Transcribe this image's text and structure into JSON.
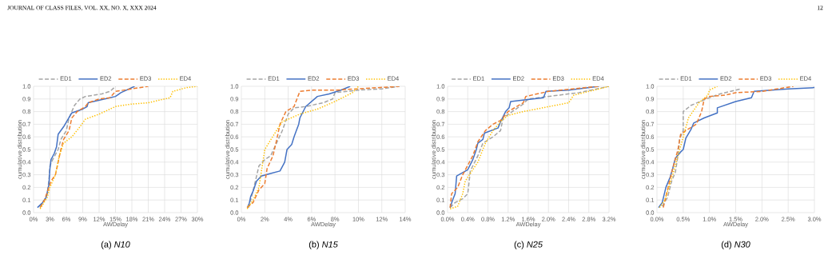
{
  "chart_data": [
    {
      "type": "line",
      "title": "(a) *N10*",
      "xlabel": "AWDelay",
      "ylabel": "cumulative distribution",
      "grid": true,
      "legend": "top",
      "marker": "none",
      "annotations": [
        "JOURNAL OF CLASS FILES, VOL. XX, NO. X, XXX 2024",
        "12"
      ],
      "xlim": [
        0,
        30
      ],
      "xticks": [
        {
          "value": 0,
          "label": "0%"
        },
        {
          "value": 3,
          "label": "3%"
        },
        {
          "value": 6,
          "label": "6%"
        },
        {
          "value": 9,
          "label": "9%"
        },
        {
          "value": 12,
          "label": "12%"
        },
        {
          "value": 15,
          "label": "15%"
        },
        {
          "value": 18,
          "label": "18%"
        },
        {
          "value": 21,
          "label": "21%"
        },
        {
          "value": 24,
          "label": "24%"
        },
        {
          "value": 27,
          "label": "27%"
        },
        {
          "value": 30,
          "label": "30%"
        }
      ],
      "ylim": [
        0,
        1
      ],
      "yticks": [
        {
          "value": 0,
          "label": "0.0"
        },
        {
          "value": 0.1,
          "label": "0.1"
        },
        {
          "value": 0.2,
          "label": "0.2"
        },
        {
          "value": 0.3,
          "label": "0.3"
        },
        {
          "value": 0.4,
          "label": "0.4"
        },
        {
          "value": 0.5,
          "label": "0.5"
        },
        {
          "value": 0.6,
          "label": "0.6"
        },
        {
          "value": 0.7,
          "label": "0.7"
        },
        {
          "value": 0.8,
          "label": "0.8"
        },
        {
          "value": 0.9,
          "label": "0.9"
        },
        {
          "value": 1,
          "label": "1.0"
        }
      ],
      "series": [
        {
          "name": "ED1",
          "color": "#a5a5a5",
          "line_style": "dashed",
          "x": [
            1,
            2,
            2.5,
            2.8,
            3,
            3.5,
            4.5,
            5,
            6,
            6.5,
            7.5,
            8.5,
            9.5,
            11,
            12.5,
            14,
            15
          ],
          "values": [
            0.05,
            0.1,
            0.15,
            0.25,
            0.37,
            0.42,
            0.5,
            0.58,
            0.65,
            0.75,
            0.85,
            0.9,
            0.92,
            0.93,
            0.94,
            0.96,
            1.0
          ]
        },
        {
          "name": "ED2",
          "color": "#4472c4",
          "line_style": "solid",
          "x": [
            0.7,
            1.5,
            2.3,
            2.8,
            3.0,
            3.2,
            3.8,
            4.2,
            4.5,
            5.5,
            7,
            9,
            9.8,
            10,
            12,
            14,
            15,
            16,
            18.5
          ],
          "values": [
            0.04,
            0.07,
            0.12,
            0.22,
            0.35,
            0.42,
            0.47,
            0.52,
            0.62,
            0.68,
            0.79,
            0.82,
            0.84,
            0.87,
            0.89,
            0.91,
            0.92,
            0.95,
            1.0
          ]
        },
        {
          "name": "ED3",
          "color": "#ed7d31",
          "line_style": "dashed",
          "x": [
            1.2,
            2,
            2.8,
            3.2,
            4,
            4.5,
            5,
            5.5,
            6.5,
            7,
            8,
            9.5,
            10,
            12,
            14,
            15,
            18,
            21
          ],
          "values": [
            0.04,
            0.1,
            0.2,
            0.25,
            0.3,
            0.4,
            0.5,
            0.58,
            0.65,
            0.75,
            0.8,
            0.84,
            0.87,
            0.9,
            0.91,
            0.96,
            0.98,
            1.0
          ]
        },
        {
          "name": "ED4",
          "color": "#ffc000",
          "line_style": "dotted",
          "x": [
            1.2,
            2.5,
            3,
            4,
            4.7,
            5.5,
            7,
            8.5,
            9.5,
            12,
            15,
            18,
            21,
            25,
            25.5,
            28,
            30
          ],
          "values": [
            0.03,
            0.12,
            0.2,
            0.3,
            0.45,
            0.55,
            0.6,
            0.68,
            0.74,
            0.78,
            0.84,
            0.86,
            0.87,
            0.91,
            0.96,
            0.99,
            1.0
          ]
        }
      ]
    },
    {
      "type": "line",
      "title": "(b) *N15*",
      "xlabel": "AWDelay",
      "ylabel": "cumulative distribution",
      "grid": true,
      "legend": "top",
      "marker": "none",
      "xlim": [
        0,
        14
      ],
      "xticks": [
        {
          "value": 0,
          "label": "0%"
        },
        {
          "value": 2,
          "label": "2%"
        },
        {
          "value": 4,
          "label": "4%"
        },
        {
          "value": 6,
          "label": "6%"
        },
        {
          "value": 8,
          "label": "8%"
        },
        {
          "value": 10,
          "label": "10%"
        },
        {
          "value": 12,
          "label": "12%"
        },
        {
          "value": 14,
          "label": "14%"
        }
      ],
      "ylim": [
        0,
        1
      ],
      "yticks": [
        {
          "value": 0,
          "label": "0.0"
        },
        {
          "value": 0.1,
          "label": "0.1"
        },
        {
          "value": 0.2,
          "label": "0.2"
        },
        {
          "value": 0.3,
          "label": "0.3"
        },
        {
          "value": 0.4,
          "label": "0.4"
        },
        {
          "value": 0.5,
          "label": "0.5"
        },
        {
          "value": 0.6,
          "label": "0.6"
        },
        {
          "value": 0.7,
          "label": "0.7"
        },
        {
          "value": 0.8,
          "label": "0.8"
        },
        {
          "value": 0.9,
          "label": "0.9"
        },
        {
          "value": 1,
          "label": "1.0"
        }
      ],
      "series": [
        {
          "name": "ED1",
          "color": "#a5a5a5",
          "line_style": "dashed",
          "x": [
            0.5,
            0.8,
            1.2,
            1.5,
            2,
            2.5,
            3,
            3.5,
            4,
            4.5,
            5.5,
            7,
            7.8,
            8,
            10,
            12,
            13.5
          ],
          "values": [
            0.04,
            0.1,
            0.25,
            0.37,
            0.42,
            0.45,
            0.55,
            0.65,
            0.78,
            0.83,
            0.84,
            0.87,
            0.9,
            0.95,
            0.97,
            0.98,
            1.0
          ]
        },
        {
          "name": "ED2",
          "color": "#4472c4",
          "line_style": "solid",
          "x": [
            0.6,
            0.8,
            1.0,
            1.3,
            1.7,
            2.5,
            3.3,
            3.7,
            3.9,
            4.3,
            4.5,
            4.7,
            4.9,
            5.0,
            5.5,
            6.5,
            7.5,
            8.5,
            9.3
          ],
          "values": [
            0.04,
            0.13,
            0.17,
            0.25,
            0.29,
            0.31,
            0.33,
            0.4,
            0.5,
            0.54,
            0.6,
            0.65,
            0.7,
            0.75,
            0.84,
            0.92,
            0.94,
            0.97,
            1.0
          ]
        },
        {
          "name": "ED3",
          "color": "#ed7d31",
          "line_style": "dashed",
          "x": [
            0.5,
            1,
            1.5,
            2,
            2.2,
            2.7,
            3,
            3.3,
            3.8,
            4.5,
            5,
            6,
            8,
            10,
            13.5
          ],
          "values": [
            0.04,
            0.08,
            0.18,
            0.23,
            0.35,
            0.45,
            0.57,
            0.7,
            0.8,
            0.84,
            0.96,
            0.97,
            0.97,
            0.98,
            1.0
          ]
        },
        {
          "name": "ED4",
          "color": "#ffc000",
          "line_style": "dotted",
          "x": [
            0.5,
            1,
            1.5,
            2,
            3,
            3.5,
            5,
            6.5,
            8,
            9.5,
            10
          ],
          "values": [
            0.03,
            0.1,
            0.2,
            0.5,
            0.65,
            0.72,
            0.78,
            0.82,
            0.88,
            0.95,
            1.0
          ]
        }
      ]
    },
    {
      "type": "line",
      "title": "(c) *N25*",
      "xlabel": "AWDelay",
      "ylabel": "cumulative distribution",
      "grid": true,
      "legend": "top",
      "marker": "none",
      "xlim": [
        0,
        3.2
      ],
      "xticks": [
        {
          "value": 0,
          "label": "0.0%"
        },
        {
          "value": 0.4,
          "label": "0.4%"
        },
        {
          "value": 0.8,
          "label": "0.8%"
        },
        {
          "value": 1.2,
          "label": "1.2%"
        },
        {
          "value": 1.6,
          "label": "1.6%"
        },
        {
          "value": 2.0,
          "label": "2.0%"
        },
        {
          "value": 2.4,
          "label": "2.4%"
        },
        {
          "value": 2.8,
          "label": "2.8%"
        },
        {
          "value": 3.2,
          "label": "3.2%"
        }
      ],
      "ylim": [
        0,
        1
      ],
      "yticks": [
        {
          "value": 0,
          "label": "0.0"
        },
        {
          "value": 0.1,
          "label": "0.1"
        },
        {
          "value": 0.2,
          "label": "0.2"
        },
        {
          "value": 0.3,
          "label": "0.3"
        },
        {
          "value": 0.4,
          "label": "0.4"
        },
        {
          "value": 0.5,
          "label": "0.5"
        },
        {
          "value": 0.6,
          "label": "0.6"
        },
        {
          "value": 0.7,
          "label": "0.7"
        },
        {
          "value": 0.8,
          "label": "0.8"
        },
        {
          "value": 0.9,
          "label": "0.9"
        },
        {
          "value": 1,
          "label": "1.0"
        }
      ],
      "series": [
        {
          "name": "ED1",
          "color": "#a5a5a5",
          "line_style": "dashed",
          "x": [
            0.05,
            0.15,
            0.3,
            0.4,
            0.42,
            0.45,
            0.6,
            0.7,
            0.9,
            1.05,
            1.1,
            1.5,
            1.6,
            2.2,
            2.6,
            3.2
          ],
          "values": [
            0.04,
            0.08,
            0.11,
            0.15,
            0.22,
            0.33,
            0.45,
            0.55,
            0.6,
            0.65,
            0.75,
            0.86,
            0.9,
            0.93,
            0.95,
            1.0
          ]
        },
        {
          "name": "ED2",
          "color": "#4472c4",
          "line_style": "solid",
          "x": [
            0.05,
            0.1,
            0.15,
            0.18,
            0.4,
            0.5,
            0.57,
            0.6,
            0.7,
            0.73,
            1.0,
            1.05,
            1.15,
            1.22,
            1.25,
            1.9,
            1.95,
            2.4,
            3.0
          ],
          "values": [
            0.04,
            0.1,
            0.15,
            0.29,
            0.34,
            0.42,
            0.5,
            0.55,
            0.58,
            0.63,
            0.67,
            0.72,
            0.8,
            0.83,
            0.88,
            0.91,
            0.96,
            0.97,
            1.0
          ]
        },
        {
          "name": "ED3",
          "color": "#ed7d31",
          "line_style": "dashed",
          "x": [
            0.05,
            0.08,
            0.2,
            0.3,
            0.5,
            0.6,
            0.75,
            0.9,
            1.05,
            1.2,
            1.5,
            1.55,
            2.0,
            3.0
          ],
          "values": [
            0.04,
            0.15,
            0.2,
            0.3,
            0.45,
            0.56,
            0.65,
            0.7,
            0.73,
            0.8,
            0.87,
            0.92,
            0.96,
            1.0
          ]
        },
        {
          "name": "ED4",
          "color": "#ffc000",
          "line_style": "dotted",
          "x": [
            0.05,
            0.2,
            0.3,
            0.35,
            0.6,
            0.75,
            0.9,
            1.05,
            1.2,
            1.5,
            2.4,
            2.5,
            3.0,
            3.2
          ],
          "values": [
            0.03,
            0.05,
            0.15,
            0.25,
            0.4,
            0.55,
            0.65,
            0.72,
            0.77,
            0.8,
            0.87,
            0.93,
            0.98,
            1.0
          ]
        }
      ]
    },
    {
      "type": "line",
      "title": "(d) *N30*",
      "xlabel": "AWDelay",
      "ylabel": "cumulative distribution",
      "grid": true,
      "legend": "top",
      "marker": "none",
      "xlim": [
        0,
        3.0
      ],
      "xticks": [
        {
          "value": 0,
          "label": "0.0%"
        },
        {
          "value": 0.5,
          "label": "0.5%"
        },
        {
          "value": 1.0,
          "label": "1.0%"
        },
        {
          "value": 1.5,
          "label": "1.5%"
        },
        {
          "value": 2.0,
          "label": "2.0%"
        },
        {
          "value": 2.5,
          "label": "2.5%"
        },
        {
          "value": 3.0,
          "label": "3.0%"
        }
      ],
      "ylim": [
        0,
        1
      ],
      "yticks": [
        {
          "value": 0,
          "label": "0.0"
        },
        {
          "value": 0.1,
          "label": "0.1"
        },
        {
          "value": 0.2,
          "label": "0.2"
        },
        {
          "value": 0.3,
          "label": "0.3"
        },
        {
          "value": 0.4,
          "label": "0.4"
        },
        {
          "value": 0.5,
          "label": "0.5"
        },
        {
          "value": 0.6,
          "label": "0.6"
        },
        {
          "value": 0.7,
          "label": "0.7"
        },
        {
          "value": 0.8,
          "label": "0.8"
        },
        {
          "value": 0.9,
          "label": "0.9"
        },
        {
          "value": 1,
          "label": "1.0"
        }
      ],
      "series": [
        {
          "name": "ED1",
          "color": "#a5a5a5",
          "line_style": "dashed",
          "x": [
            0.1,
            0.2,
            0.28,
            0.35,
            0.4,
            0.43,
            0.5,
            0.5,
            0.65,
            1.0,
            1.2,
            1.6
          ],
          "values": [
            0.05,
            0.12,
            0.25,
            0.32,
            0.45,
            0.58,
            0.65,
            0.8,
            0.85,
            0.91,
            0.94,
            0.98
          ]
        },
        {
          "name": "ED2",
          "color": "#4472c4",
          "line_style": "solid",
          "x": [
            0.03,
            0.1,
            0.17,
            0.25,
            0.3,
            0.35,
            0.45,
            0.5,
            0.55,
            0.65,
            0.7,
            0.9,
            1.15,
            1.15,
            1.5,
            1.8,
            1.85,
            2.5,
            3.0
          ],
          "values": [
            0.04,
            0.08,
            0.2,
            0.28,
            0.35,
            0.43,
            0.48,
            0.5,
            0.59,
            0.66,
            0.71,
            0.75,
            0.79,
            0.83,
            0.88,
            0.91,
            0.96,
            0.98,
            0.99
          ]
        },
        {
          "name": "ED3",
          "color": "#ed7d31",
          "line_style": "dashed",
          "x": [
            0.12,
            0.2,
            0.3,
            0.4,
            0.45,
            0.55,
            0.75,
            0.85,
            0.9,
            1.0,
            1.3,
            1.5,
            2.0,
            2.6
          ],
          "values": [
            0.04,
            0.18,
            0.35,
            0.5,
            0.62,
            0.65,
            0.7,
            0.8,
            0.9,
            0.92,
            0.93,
            0.95,
            0.96,
            1.0
          ]
        },
        {
          "name": "ED4",
          "color": "#ffc000",
          "line_style": "dotted",
          "x": [
            0.05,
            0.15,
            0.3,
            0.4,
            0.5,
            0.6,
            0.8,
            0.97,
            1.0,
            1.15
          ],
          "values": [
            0.04,
            0.1,
            0.3,
            0.45,
            0.6,
            0.75,
            0.87,
            0.93,
            0.97,
            1.0
          ]
        }
      ]
    }
  ]
}
